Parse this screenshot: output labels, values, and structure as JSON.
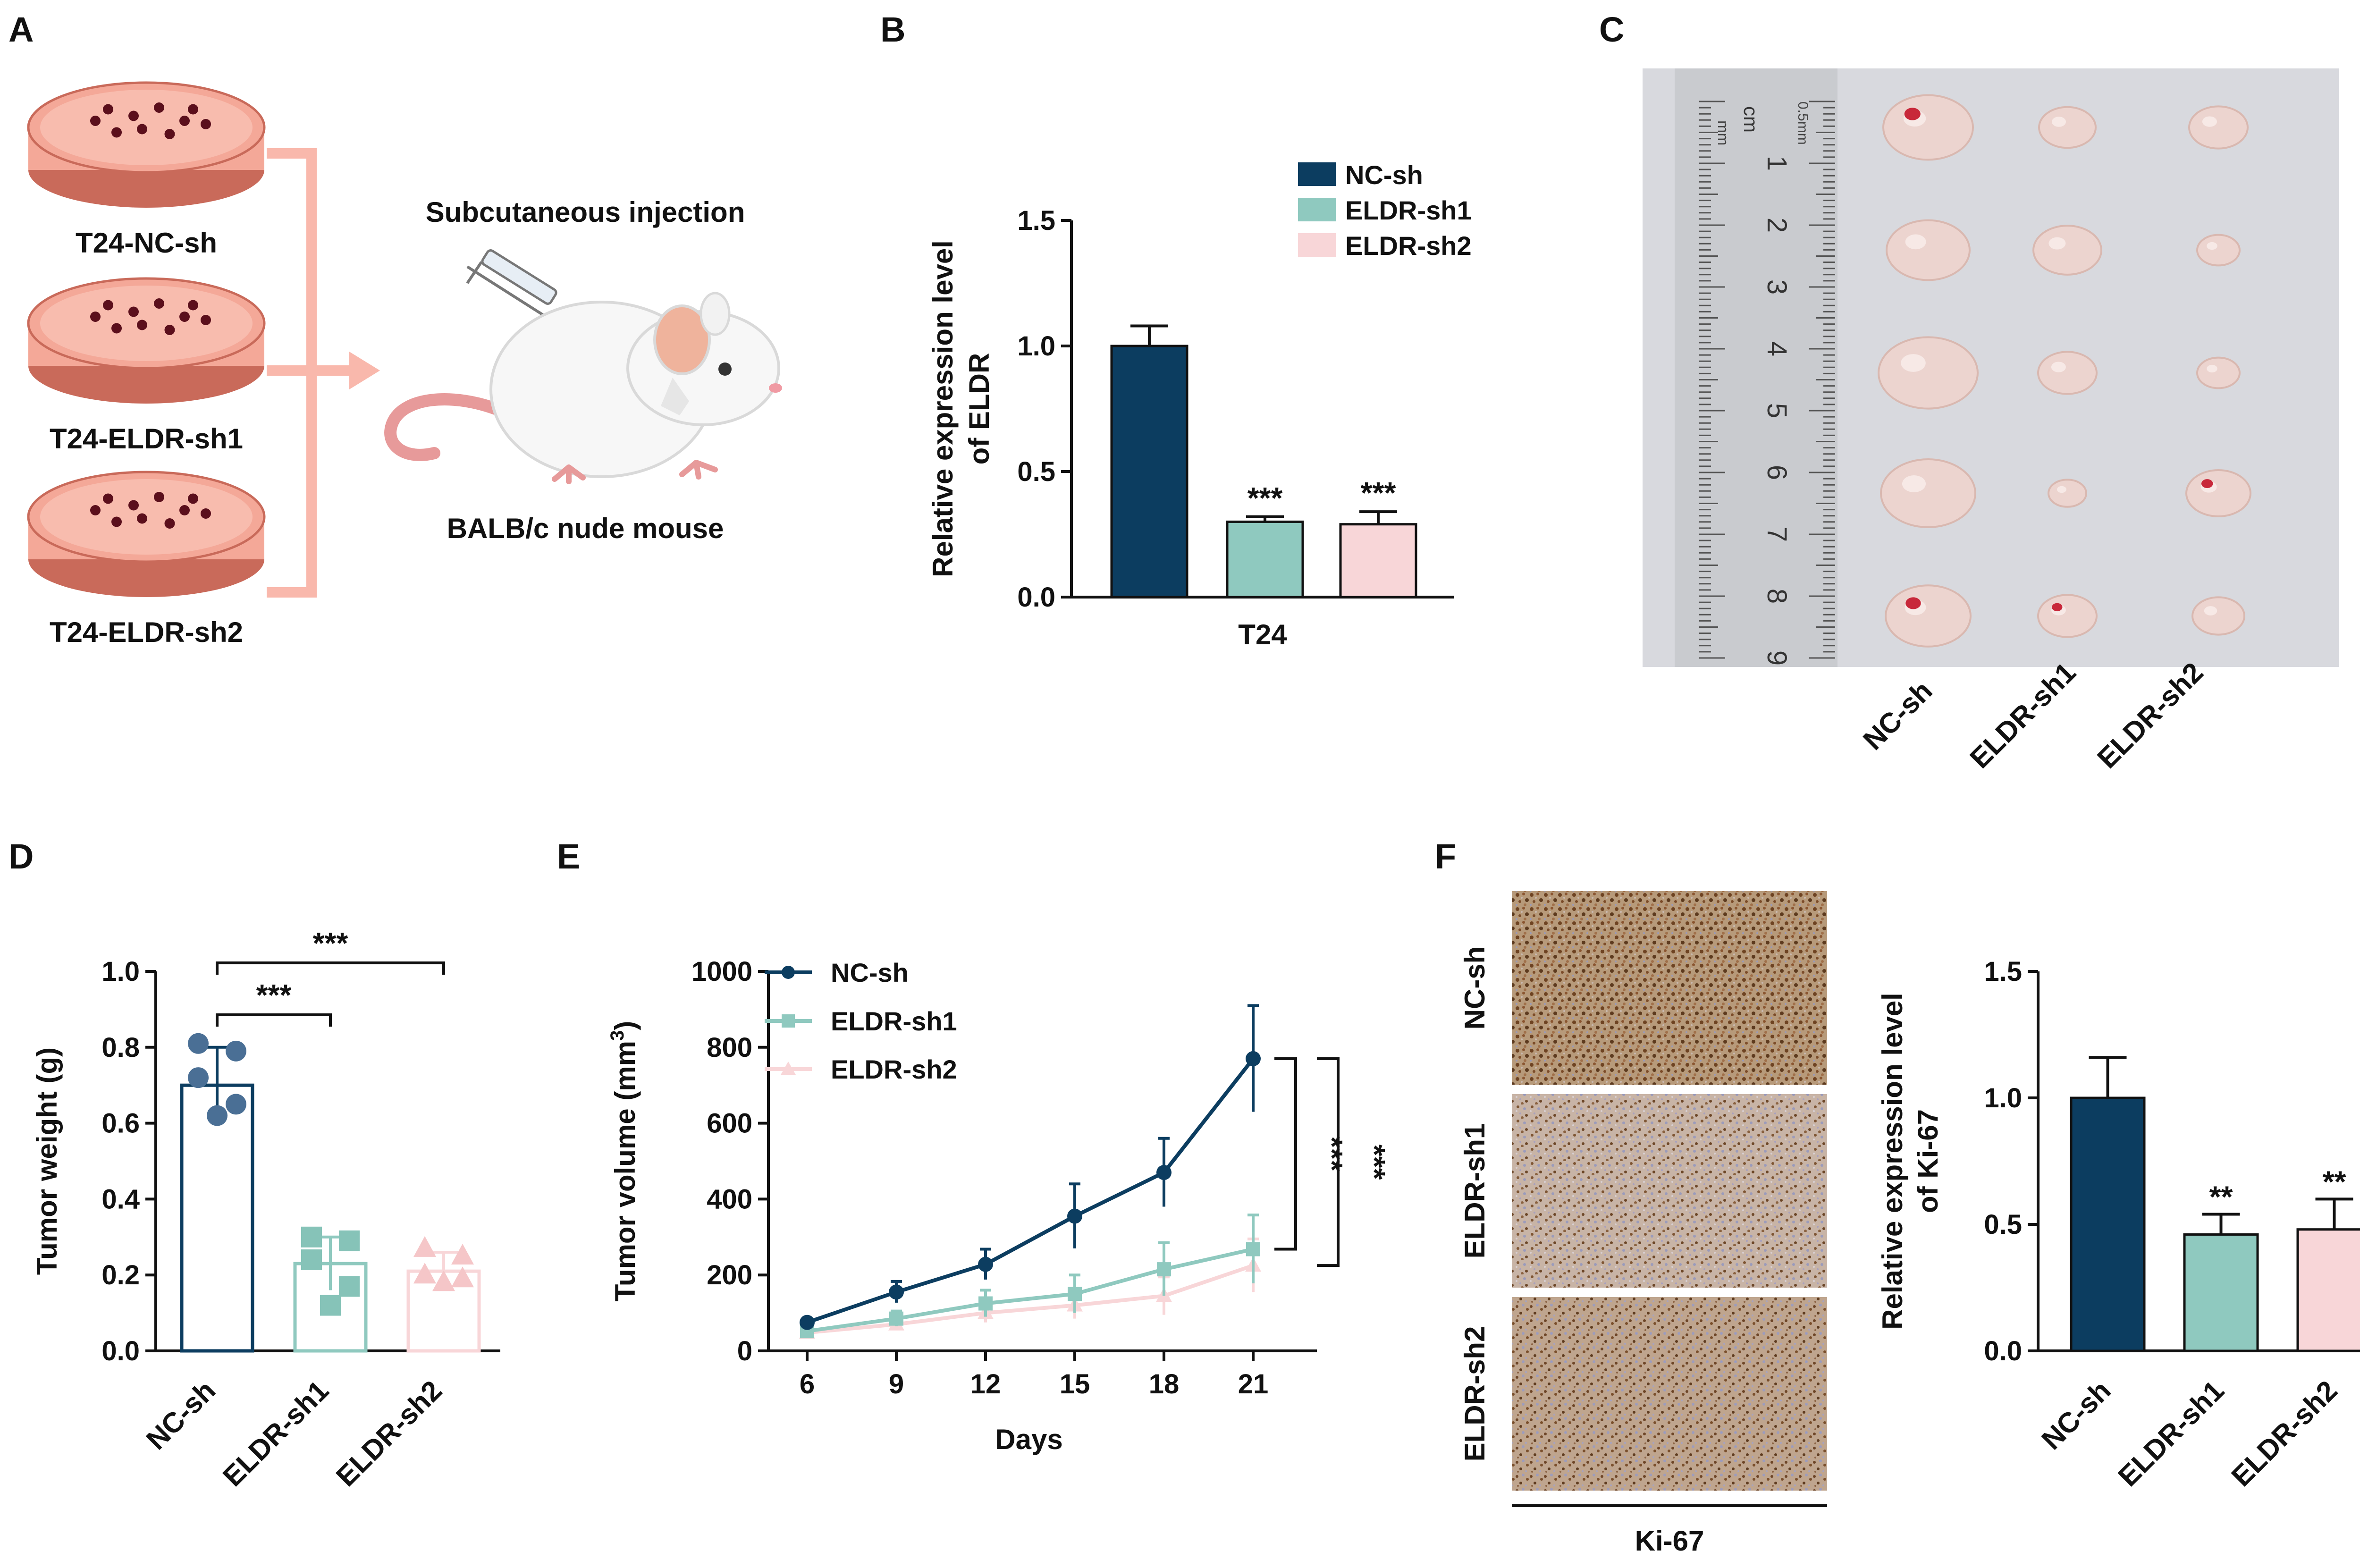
{
  "panel_labels": {
    "a": "A",
    "b": "B",
    "c": "C",
    "d": "D",
    "e": "E",
    "f": "F"
  },
  "colors": {
    "nc": "#0c3d60",
    "sh1": "#8fc9bf",
    "sh2": "#f8d6d8",
    "dish": "#f4a898",
    "dish_rim": "#c96a5a",
    "arrow": "#f9b8ac",
    "dot": "#5b0f1c",
    "nc_point": "#4a6f95",
    "sh1_point": "#86c3b8",
    "sh2_point": "#f5c6c8"
  },
  "panel_a": {
    "dishes": [
      "T24-NC-sh",
      "T24-ELDR-sh1",
      "T24-ELDR-sh2"
    ],
    "injection_label": "Subcutaneous injection",
    "mouse_label": "BALB/c nude mouse"
  },
  "panel_c": {
    "columns": [
      "NC-sh",
      "ELDR-sh1",
      "ELDR-sh2"
    ],
    "ruler_unit": "cm",
    "ruler_numbers": [
      "1",
      "2",
      "3",
      "4",
      "5",
      "6",
      "7",
      "8",
      "9"
    ],
    "ruler_left_tag": "mm",
    "ruler_right_tag": "0.5mm"
  },
  "panel_f": {
    "rows": [
      "NC-sh",
      "ELDR-sh1",
      "ELDR-sh2"
    ],
    "stain_label": "Ki-67"
  },
  "chart_data": [
    {
      "id": "B",
      "type": "bar",
      "ylabel": "Relative expression level of ELDR",
      "ylabel_lines": [
        "Relative expression level",
        "of ELDR"
      ],
      "xlabel": "T24",
      "ylim": [
        0,
        1.5
      ],
      "yticks": [
        "0.0",
        "0.5",
        "1.0",
        "1.5"
      ],
      "legend": [
        "NC-sh",
        "ELDR-sh1",
        "ELDR-sh2"
      ],
      "legend_position": "top-right",
      "series": [
        {
          "name": "NC-sh",
          "value": 1.0,
          "error": 0.08,
          "significance": ""
        },
        {
          "name": "ELDR-sh1",
          "value": 0.3,
          "error": 0.02,
          "significance": "***"
        },
        {
          "name": "ELDR-sh2",
          "value": 0.29,
          "error": 0.05,
          "significance": "***"
        }
      ]
    },
    {
      "id": "D",
      "type": "scatter",
      "ylabel": "Tumor weight (g)",
      "ylim": [
        0,
        1.0
      ],
      "yticks": [
        "0.0",
        "0.2",
        "0.4",
        "0.6",
        "0.8",
        "1.0"
      ],
      "categories": [
        "NC-sh",
        "ELDR-sh1",
        "ELDR-sh2"
      ],
      "means": [
        0.7,
        0.23,
        0.21
      ],
      "sd": [
        0.1,
        0.07,
        0.05
      ],
      "points": [
        [
          0.81,
          0.79,
          0.72,
          0.65,
          0.62
        ],
        [
          0.3,
          0.29,
          0.24,
          0.17,
          0.12
        ],
        [
          0.27,
          0.25,
          0.2,
          0.19,
          0.18
        ]
      ],
      "comparisons": [
        {
          "from": "NC-sh",
          "to": "ELDR-sh1",
          "label": "***"
        },
        {
          "from": "NC-sh",
          "to": "ELDR-sh2",
          "label": "***"
        }
      ]
    },
    {
      "id": "E",
      "type": "line",
      "ylabel": "Tumor volume (mm3)",
      "ylabel_main": "Tumor volume (mm",
      "ylabel_sup": "3",
      "ylabel_end": ")",
      "xlabel": "Days",
      "x": [
        6,
        9,
        12,
        15,
        18,
        21
      ],
      "xticks": [
        "6",
        "9",
        "12",
        "15",
        "18",
        "21"
      ],
      "ylim": [
        0,
        1000
      ],
      "yticks": [
        "0",
        "200",
        "400",
        "600",
        "800",
        "1000"
      ],
      "legend_position": "top-left",
      "series": [
        {
          "name": "NC-sh",
          "values": [
            75,
            155,
            228,
            355,
            470,
            770
          ],
          "errors": [
            8,
            28,
            40,
            85,
            90,
            140
          ]
        },
        {
          "name": "ELDR-sh1",
          "values": [
            52,
            85,
            125,
            150,
            215,
            268
          ],
          "errors": [
            8,
            20,
            35,
            50,
            70,
            90
          ]
        },
        {
          "name": "ELDR-sh2",
          "values": [
            48,
            70,
            100,
            120,
            145,
            225
          ],
          "errors": [
            6,
            15,
            25,
            35,
            50,
            70
          ]
        }
      ],
      "significance": [
        "***",
        "***"
      ]
    },
    {
      "id": "F",
      "type": "bar",
      "ylabel": "Relative expression level of Ki-67",
      "ylabel_lines": [
        "Relative expression level",
        "of Ki-67"
      ],
      "ylim": [
        0,
        1.5
      ],
      "yticks": [
        "0.0",
        "0.5",
        "1.0",
        "1.5"
      ],
      "categories": [
        "NC-sh",
        "ELDR-sh1",
        "ELDR-sh2"
      ],
      "series": [
        {
          "name": "NC-sh",
          "value": 1.0,
          "error": 0.16,
          "significance": ""
        },
        {
          "name": "ELDR-sh1",
          "value": 0.46,
          "error": 0.08,
          "significance": "**"
        },
        {
          "name": "ELDR-sh2",
          "value": 0.48,
          "error": 0.12,
          "significance": "**"
        }
      ]
    }
  ]
}
